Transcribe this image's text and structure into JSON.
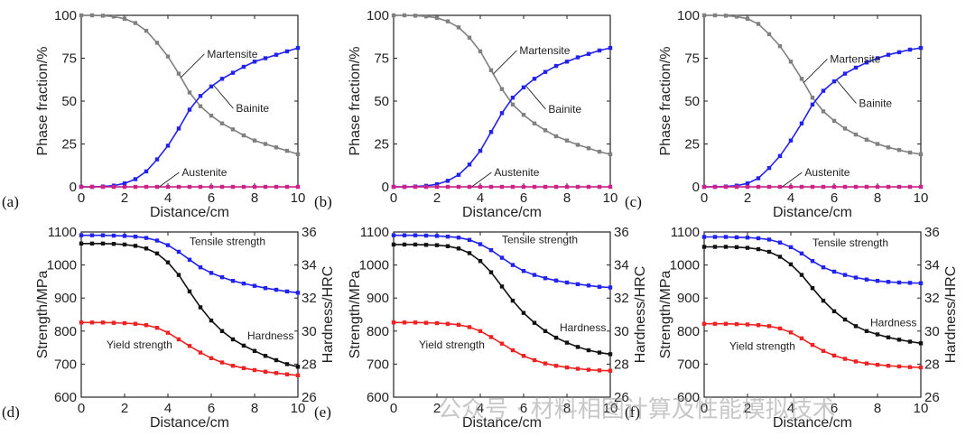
{
  "chart_data": [
    {
      "panel": "(a)",
      "type": "line",
      "xlabel": "Distance/cm",
      "ylabel": "Phase fraction/%",
      "xlim": [
        0,
        10
      ],
      "ylim": [
        0,
        100
      ],
      "xticks": [
        "0",
        "2",
        "4",
        "6",
        "8",
        "10"
      ],
      "yticks": [
        "0",
        "25",
        "50",
        "75",
        "100"
      ],
      "x": [
        0,
        0.5,
        1,
        1.5,
        2,
        2.5,
        3,
        3.5,
        4,
        4.5,
        5,
        5.5,
        6,
        6.5,
        7,
        7.5,
        8,
        8.5,
        9,
        9.5,
        10
      ],
      "series": [
        {
          "name": "Martensite",
          "color": "#808080",
          "values": [
            100,
            100,
            99.8,
            99.3,
            98,
            95.5,
            91,
            84,
            76,
            66,
            55,
            47,
            41.5,
            37,
            33.5,
            30,
            27,
            25,
            23,
            21,
            19
          ]
        },
        {
          "name": "Bainite",
          "color": "#2222ee",
          "values": [
            0,
            0,
            0.2,
            0.7,
            2,
            4.5,
            9,
            16,
            24,
            34,
            45,
            53,
            58.5,
            63,
            66.5,
            70,
            73,
            75,
            77,
            79,
            81
          ]
        },
        {
          "name": "Austenite",
          "color": "#d0208a",
          "values": [
            0,
            0,
            0,
            0,
            0,
            0,
            0,
            0,
            0,
            0,
            0,
            0,
            0,
            0,
            0,
            0,
            0,
            0,
            0,
            0,
            0
          ]
        }
      ]
    },
    {
      "panel": "(b)",
      "type": "line",
      "xlabel": "Distance/cm",
      "ylabel": "Phase fraction/%",
      "xlim": [
        0,
        10
      ],
      "ylim": [
        0,
        100
      ],
      "xticks": [
        "0",
        "2",
        "4",
        "6",
        "8",
        "10"
      ],
      "yticks": [
        "0",
        "25",
        "50",
        "75",
        "100"
      ],
      "x": [
        0,
        0.5,
        1,
        1.5,
        2,
        2.5,
        3,
        3.5,
        4,
        4.5,
        5,
        5.5,
        6,
        6.5,
        7,
        7.5,
        8,
        8.5,
        9,
        9.5,
        10
      ],
      "series": [
        {
          "name": "Martensite",
          "color": "#808080",
          "values": [
            100,
            100,
            99.8,
            99.4,
            98.5,
            96.5,
            93,
            87,
            79,
            68,
            57,
            48,
            42,
            37,
            33,
            29.5,
            27,
            24.5,
            22.5,
            20.5,
            19
          ]
        },
        {
          "name": "Bainite",
          "color": "#2222ee",
          "values": [
            0,
            0,
            0.2,
            0.6,
            1.5,
            3.5,
            7,
            13,
            21,
            32,
            43,
            52,
            58,
            63,
            67,
            70.5,
            73,
            75.5,
            77.5,
            79.5,
            81
          ]
        },
        {
          "name": "Austenite",
          "color": "#d0208a",
          "values": [
            0,
            0,
            0,
            0,
            0,
            0,
            0,
            0,
            0,
            0,
            0,
            0,
            0,
            0,
            0,
            0,
            0,
            0,
            0,
            0,
            0
          ]
        }
      ]
    },
    {
      "panel": "(c)",
      "type": "line",
      "xlabel": "Distance/cm",
      "ylabel": "Phase fraction/%",
      "xlim": [
        0,
        10
      ],
      "ylim": [
        0,
        100
      ],
      "xticks": [
        "0",
        "2",
        "4",
        "6",
        "8",
        "10"
      ],
      "yticks": [
        "0",
        "25",
        "50",
        "75",
        "100"
      ],
      "x": [
        0,
        0.5,
        1,
        1.5,
        2,
        2.5,
        3,
        3.5,
        4,
        4.5,
        5,
        5.5,
        6,
        6.5,
        7,
        7.5,
        8,
        8.5,
        9,
        9.5,
        10
      ],
      "series": [
        {
          "name": "Martensite",
          "color": "#808080",
          "values": [
            100,
            100,
            99.8,
            99.3,
            98,
            95,
            89,
            82,
            73,
            63,
            52,
            44,
            38.5,
            34,
            30.5,
            27.5,
            25,
            23,
            21.5,
            20,
            19
          ]
        },
        {
          "name": "Bainite",
          "color": "#2222ee",
          "values": [
            0,
            0,
            0.2,
            0.7,
            2,
            5,
            11,
            18,
            27,
            37,
            48,
            56,
            61.5,
            66,
            69.5,
            72.5,
            75,
            77,
            78.5,
            80,
            81
          ]
        },
        {
          "name": "Austenite",
          "color": "#d0208a",
          "values": [
            0,
            0,
            0,
            0,
            0,
            0,
            0,
            0,
            0,
            0,
            0,
            0,
            0,
            0,
            0,
            0,
            0,
            0,
            0,
            0,
            0
          ]
        }
      ]
    },
    {
      "panel": "(d)",
      "type": "line",
      "xlabel": "Distance/cm",
      "ylabel": "Strength/MPa",
      "y2label": "Hardness/HRC",
      "xlim": [
        0,
        10
      ],
      "ylim": [
        600,
        1100
      ],
      "y2lim": [
        26,
        36
      ],
      "xticks": [
        "0",
        "2",
        "4",
        "6",
        "8",
        "10"
      ],
      "yticks": [
        "600",
        "700",
        "800",
        "900",
        "1000",
        "1100"
      ],
      "y2ticks": [
        "26",
        "28",
        "30",
        "32",
        "34",
        "36"
      ],
      "x": [
        0,
        0.5,
        1,
        1.5,
        2,
        2.5,
        3,
        3.5,
        4,
        4.5,
        5,
        5.5,
        6,
        6.5,
        7,
        7.5,
        8,
        8.5,
        9,
        9.5,
        10
      ],
      "series": [
        {
          "name": "Tensile strength",
          "color": "#2222ee",
          "axis": "left",
          "values": [
            1090,
            1090,
            1090,
            1089,
            1088,
            1086,
            1082,
            1074,
            1060,
            1040,
            1016,
            993,
            976,
            963,
            952,
            944,
            937,
            930,
            925,
            920,
            916
          ]
        },
        {
          "name": "Hardness",
          "color": "#111111",
          "axis": "left",
          "values": [
            1065,
            1065,
            1065,
            1064,
            1062,
            1058,
            1050,
            1035,
            1008,
            970,
            920,
            872,
            832,
            800,
            775,
            756,
            740,
            725,
            712,
            700,
            692
          ]
        },
        {
          "name": "Yield strength",
          "color": "#ee2222",
          "axis": "left",
          "values": [
            826,
            826,
            826,
            825,
            824,
            822,
            818,
            810,
            795,
            775,
            755,
            735,
            718,
            705,
            695,
            688,
            682,
            677,
            673,
            669,
            666
          ]
        }
      ]
    },
    {
      "panel": "(e)",
      "type": "line",
      "xlabel": "Distance/cm",
      "ylabel": "Strength/MPa",
      "y2label": "Hardness/HRC",
      "xlim": [
        0,
        10
      ],
      "ylim": [
        600,
        1100
      ],
      "y2lim": [
        26,
        36
      ],
      "xticks": [
        "0",
        "2",
        "4",
        "6",
        "8",
        "10"
      ],
      "yticks": [
        "600",
        "700",
        "800",
        "900",
        "1000",
        "1100"
      ],
      "y2ticks": [
        "26",
        "28",
        "30",
        "32",
        "34",
        "36"
      ],
      "x": [
        0,
        0.5,
        1,
        1.5,
        2,
        2.5,
        3,
        3.5,
        4,
        4.5,
        5,
        5.5,
        6,
        6.5,
        7,
        7.5,
        8,
        8.5,
        9,
        9.5,
        10
      ],
      "series": [
        {
          "name": "Tensile strength",
          "color": "#2222ee",
          "axis": "left",
          "values": [
            1090,
            1090,
            1090,
            1089,
            1088,
            1086,
            1083,
            1076,
            1063,
            1045,
            1022,
            1000,
            982,
            970,
            960,
            953,
            947,
            942,
            938,
            934,
            932
          ]
        },
        {
          "name": "Hardness",
          "color": "#111111",
          "axis": "left",
          "values": [
            1062,
            1062,
            1062,
            1061,
            1060,
            1057,
            1050,
            1036,
            1012,
            978,
            935,
            892,
            855,
            825,
            800,
            780,
            765,
            752,
            742,
            735,
            730
          ]
        },
        {
          "name": "Yield strength",
          "color": "#ee2222",
          "axis": "left",
          "values": [
            826,
            826,
            826,
            825,
            824,
            822,
            819,
            812,
            800,
            782,
            762,
            742,
            725,
            712,
            702,
            695,
            690,
            686,
            683,
            681,
            680
          ]
        }
      ]
    },
    {
      "panel": "(f)",
      "type": "line",
      "xlabel": "Distance/cm",
      "ylabel": "Strength/MPa",
      "y2label": "Hardness/HRC",
      "xlim": [
        0,
        10
      ],
      "ylim": [
        600,
        1100
      ],
      "y2lim": [
        26,
        36
      ],
      "xticks": [
        "0",
        "2",
        "4",
        "6",
        "8",
        "10"
      ],
      "yticks": [
        "600",
        "700",
        "800",
        "900",
        "1000",
        "1100"
      ],
      "y2ticks": [
        "26",
        "28",
        "30",
        "32",
        "34",
        "36"
      ],
      "x": [
        0,
        0.5,
        1,
        1.5,
        2,
        2.5,
        3,
        3.5,
        4,
        4.5,
        5,
        5.5,
        6,
        6.5,
        7,
        7.5,
        8,
        8.5,
        9,
        9.5,
        10
      ],
      "series": [
        {
          "name": "Tensile strength",
          "color": "#2222ee",
          "axis": "left",
          "values": [
            1085,
            1085,
            1085,
            1084,
            1083,
            1081,
            1077,
            1068,
            1054,
            1035,
            1012,
            993,
            980,
            970,
            962,
            956,
            952,
            949,
            947,
            946,
            945
          ]
        },
        {
          "name": "Hardness",
          "color": "#111111",
          "axis": "left",
          "values": [
            1055,
            1055,
            1055,
            1054,
            1052,
            1048,
            1040,
            1025,
            1002,
            970,
            930,
            892,
            860,
            835,
            815,
            800,
            790,
            781,
            774,
            768,
            763
          ]
        },
        {
          "name": "Yield strength",
          "color": "#ee2222",
          "axis": "left",
          "values": [
            822,
            822,
            822,
            821,
            820,
            818,
            815,
            808,
            796,
            778,
            758,
            740,
            726,
            716,
            708,
            702,
            698,
            695,
            693,
            691,
            690
          ]
        }
      ]
    }
  ],
  "watermark": "公众号 · 材料相图计算及性能模拟技术"
}
